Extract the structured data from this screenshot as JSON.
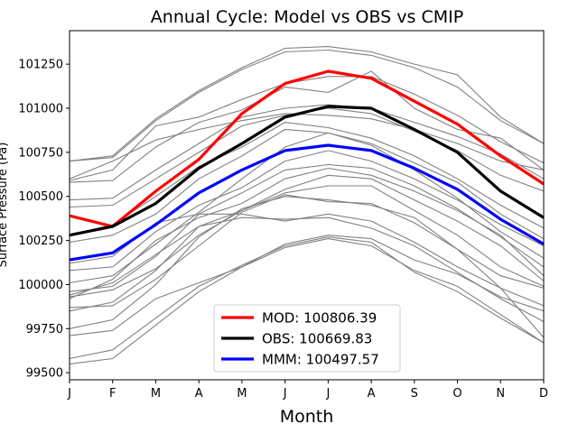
{
  "chart_data": {
    "type": "line",
    "title": "Annual Cycle: Model vs OBS vs CMIP",
    "xlabel": "Month",
    "ylabel": "Surface Pressure (Pa)",
    "categories": [
      "J",
      "F",
      "M",
      "A",
      "M",
      "J",
      "J",
      "A",
      "S",
      "O",
      "N",
      "D"
    ],
    "ylim": [
      99460,
      101440
    ],
    "yticks": [
      99500,
      99750,
      100000,
      100250,
      100500,
      100750,
      101000,
      101250
    ],
    "legend_position": "lower-center",
    "series": [
      {
        "name": "MOD: 100806.39",
        "color": "#ff0000",
        "role": "highlight",
        "values": [
          100390,
          100330,
          100530,
          100710,
          100970,
          101140,
          101210,
          101170,
          101040,
          100910,
          100730,
          100570
        ]
      },
      {
        "name": "OBS: 100669.83",
        "color": "#000000",
        "role": "highlight",
        "values": [
          100280,
          100330,
          100460,
          100660,
          100800,
          100950,
          101010,
          101000,
          100880,
          100750,
          100530,
          100380
        ]
      },
      {
        "name": "MMM: 100497.57",
        "color": "#0000ff",
        "role": "highlight",
        "values": [
          100140,
          100180,
          100340,
          100520,
          100650,
          100760,
          100790,
          100760,
          100660,
          100540,
          100370,
          100230
        ]
      }
    ],
    "ensemble_color": "#808080",
    "ensemble": [
      [
        100700,
        100730,
        100940,
        101100,
        101230,
        101340,
        101350,
        101320,
        101250,
        101190,
        100950,
        100800
      ],
      [
        100700,
        100720,
        100930,
        101090,
        101220,
        101320,
        101330,
        101300,
        101230,
        101120,
        100930,
        100800
      ],
      [
        100590,
        100650,
        100900,
        100950,
        101050,
        101140,
        101180,
        101180,
        101080,
        100960,
        100810,
        100690
      ],
      [
        100580,
        100590,
        100780,
        100920,
        100990,
        101120,
        101090,
        101210,
        101000,
        100880,
        100830,
        100650
      ],
      [
        100600,
        100700,
        100820,
        100880,
        100930,
        100970,
        100960,
        100940,
        100880,
        100800,
        100700,
        100650
      ],
      [
        100480,
        100490,
        100650,
        100800,
        100950,
        101000,
        101020,
        101000,
        100920,
        100840,
        100740,
        100600
      ],
      [
        100440,
        100450,
        100600,
        100750,
        100900,
        100960,
        101000,
        100970,
        100870,
        100760,
        100620,
        100530
      ],
      [
        100280,
        100340,
        100500,
        100670,
        100780,
        100920,
        100890,
        100830,
        100730,
        100600,
        100450,
        100320
      ],
      [
        100240,
        100280,
        100400,
        100600,
        100730,
        100880,
        100860,
        100800,
        100690,
        100580,
        100400,
        100260
      ],
      [
        100010,
        100050,
        100230,
        100410,
        100600,
        100780,
        100860,
        100790,
        100650,
        100490,
        100300,
        100150
      ],
      [
        100080,
        100100,
        100300,
        100450,
        100550,
        100700,
        100760,
        100700,
        100600,
        100480,
        100340,
        100220
      ],
      [
        99960,
        99990,
        100160,
        100400,
        100520,
        100650,
        100680,
        100660,
        100560,
        100430,
        100270,
        100100
      ],
      [
        99920,
        100030,
        100250,
        100380,
        100460,
        100600,
        100660,
        100620,
        100530,
        100420,
        100280,
        100050
      ],
      [
        99940,
        100010,
        100170,
        100330,
        100420,
        100540,
        100620,
        100600,
        100480,
        100360,
        100220,
        100020
      ],
      [
        99930,
        99970,
        100090,
        100280,
        100420,
        100520,
        100560,
        100560,
        100420,
        100280,
        100100,
        99990
      ],
      [
        100120,
        100160,
        100350,
        100400,
        100400,
        100360,
        100400,
        100360,
        100240,
        100100,
        99980,
        99880
      ],
      [
        99870,
        99880,
        100030,
        100220,
        100410,
        100510,
        100470,
        100460,
        100350,
        100200,
        100050,
        99980
      ],
      [
        99850,
        99900,
        100080,
        100330,
        100380,
        100370,
        100380,
        100320,
        100220,
        100070,
        99920,
        99790
      ],
      [
        99750,
        99800,
        100000,
        100270,
        100430,
        100500,
        100480,
        100450,
        100380,
        100200,
        99980,
        99700
      ],
      [
        99710,
        99740,
        99920,
        100010,
        100100,
        100230,
        100280,
        100260,
        100140,
        100060,
        99930,
        99850
      ],
      [
        99580,
        99630,
        99810,
        99990,
        100110,
        100220,
        100270,
        100240,
        100070,
        99960,
        99810,
        99670
      ],
      [
        99550,
        99580,
        99770,
        99960,
        100100,
        100210,
        100260,
        100220,
        100080,
        99990,
        99830,
        99670
      ]
    ]
  }
}
